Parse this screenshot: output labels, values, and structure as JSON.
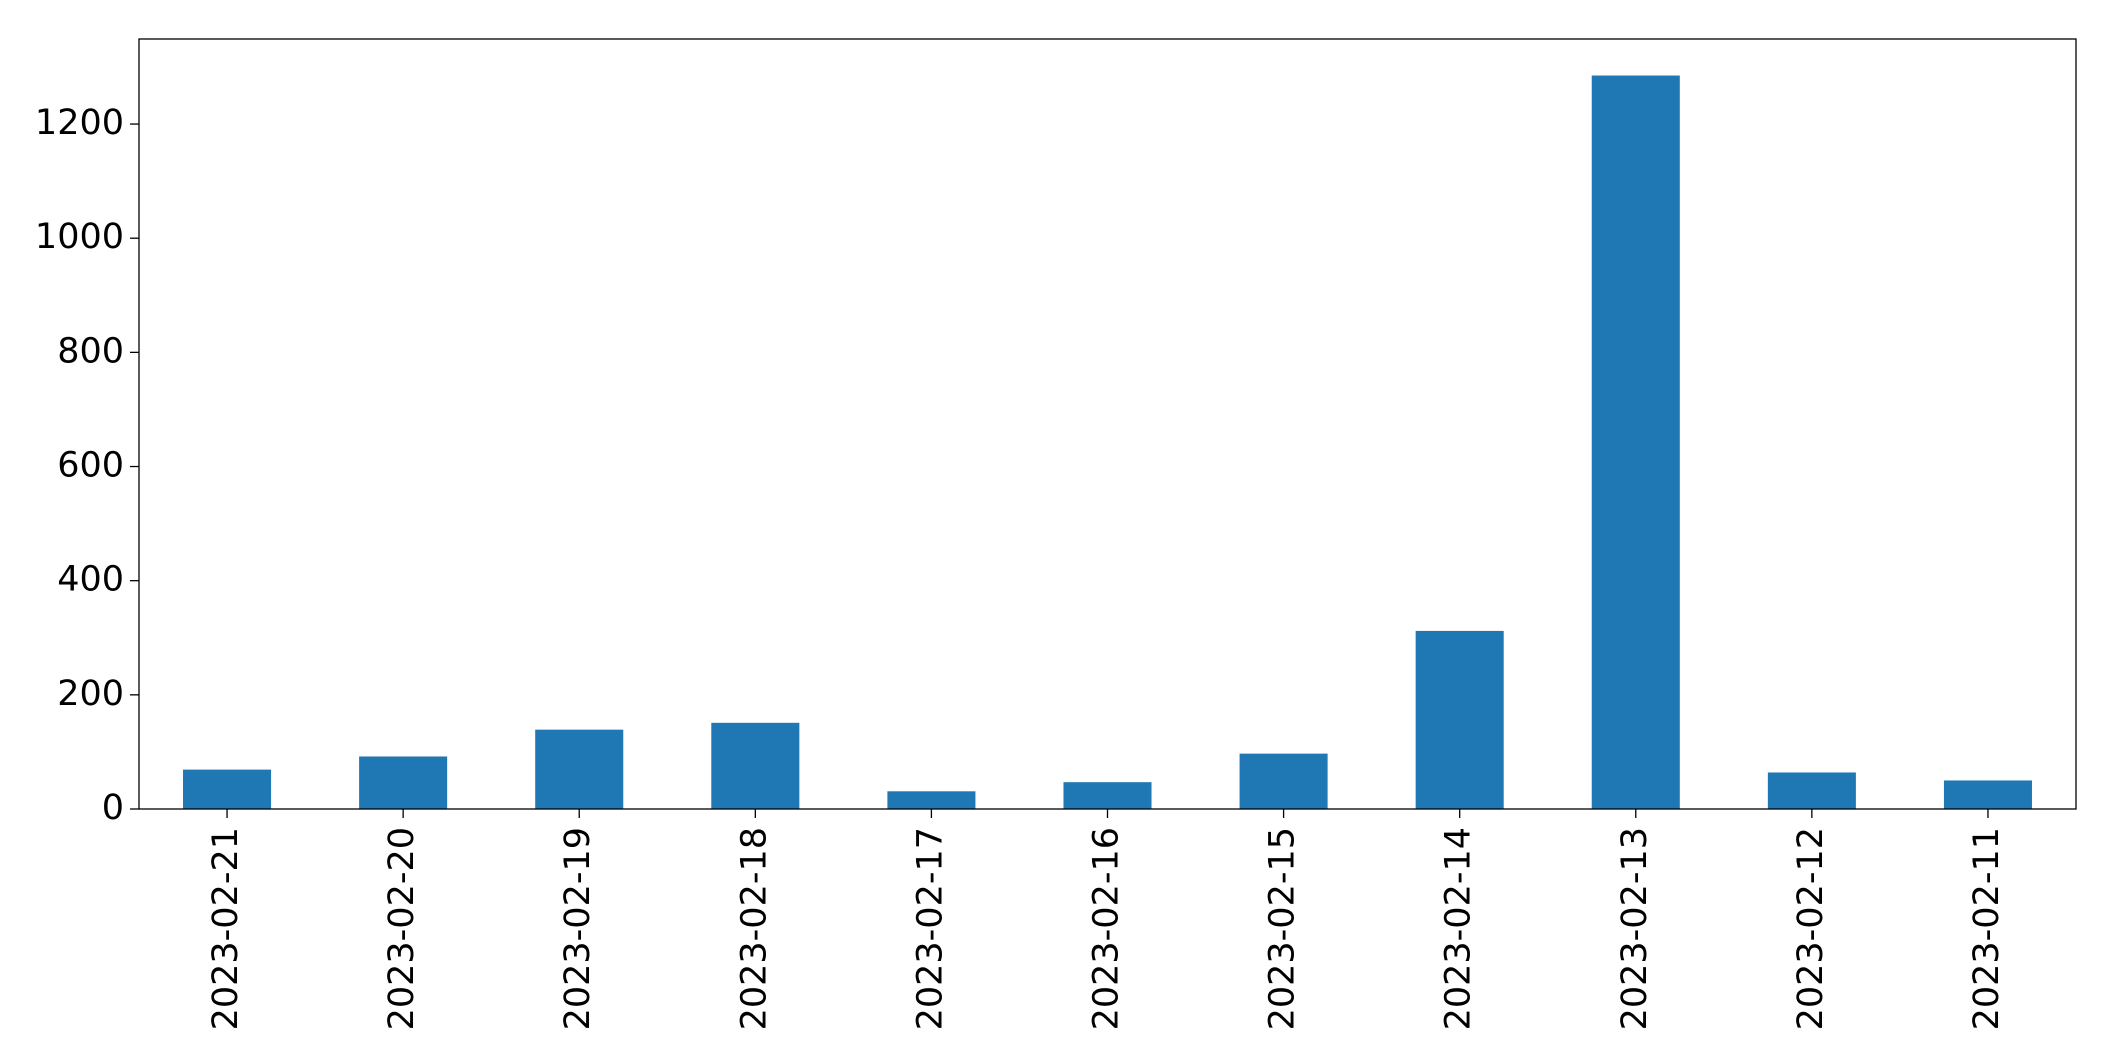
{
  "chart_data": {
    "type": "bar",
    "categories": [
      "2023-02-21",
      "2023-02-20",
      "2023-02-19",
      "2023-02-18",
      "2023-02-17",
      "2023-02-16",
      "2023-02-15",
      "2023-02-14",
      "2023-02-13",
      "2023-02-12",
      "2023-02-11"
    ],
    "values": [
      69,
      92,
      139,
      151,
      31,
      47,
      97,
      312,
      1285,
      64,
      50
    ],
    "color": "#1f77b4",
    "ylim": [
      0,
      1349
    ],
    "yticks": [
      0,
      200,
      400,
      600,
      800,
      1000,
      1200
    ],
    "grid": false
  }
}
